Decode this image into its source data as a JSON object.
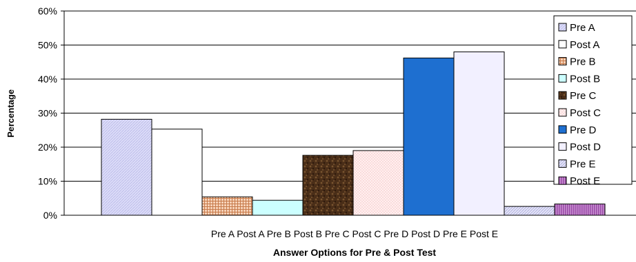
{
  "chart_data": {
    "type": "bar",
    "title": "",
    "xlabel": "Answer Options for Pre & Post Test",
    "ylabel": "Percentage",
    "ylim": [
      0,
      60
    ],
    "yticks": [
      "0%",
      "10%",
      "20%",
      "30%",
      "40%",
      "50%",
      "60%"
    ],
    "grid": true,
    "legend_position": "right",
    "categories": [
      "Pre A",
      "Post A",
      "Pre B",
      "Post B",
      "Pre C",
      "Post C",
      "Pre D",
      "Post D",
      "Pre E",
      "Post E"
    ],
    "series": [
      {
        "name": "Pre A",
        "value": 28.2,
        "color": "#d8d8f8",
        "pattern": "hatch-purple"
      },
      {
        "name": "Post A",
        "value": 25.3,
        "color": "#ffffff",
        "pattern": "none"
      },
      {
        "name": "Pre B",
        "value": 5.4,
        "color": "#f0b088",
        "pattern": "grid-orange"
      },
      {
        "name": "Post B",
        "value": 4.4,
        "color": "#ccffff",
        "pattern": "none"
      },
      {
        "name": "Pre C",
        "value": 17.6,
        "color": "#5a3a22",
        "pattern": "texture-brown"
      },
      {
        "name": "Post C",
        "value": 19.0,
        "color": "#ffe0e0",
        "pattern": "dots-pink"
      },
      {
        "name": "Pre D",
        "value": 46.2,
        "color": "#1e6fd0",
        "pattern": "none"
      },
      {
        "name": "Post D",
        "value": 48.0,
        "color": "#f2f0ff",
        "pattern": "none"
      },
      {
        "name": "Pre E",
        "value": 2.6,
        "color": "#d0d0f0",
        "pattern": "hatch-light"
      },
      {
        "name": "Post E",
        "value": 3.3,
        "color": "#a050b0",
        "pattern": "vstripe-purple"
      }
    ]
  }
}
